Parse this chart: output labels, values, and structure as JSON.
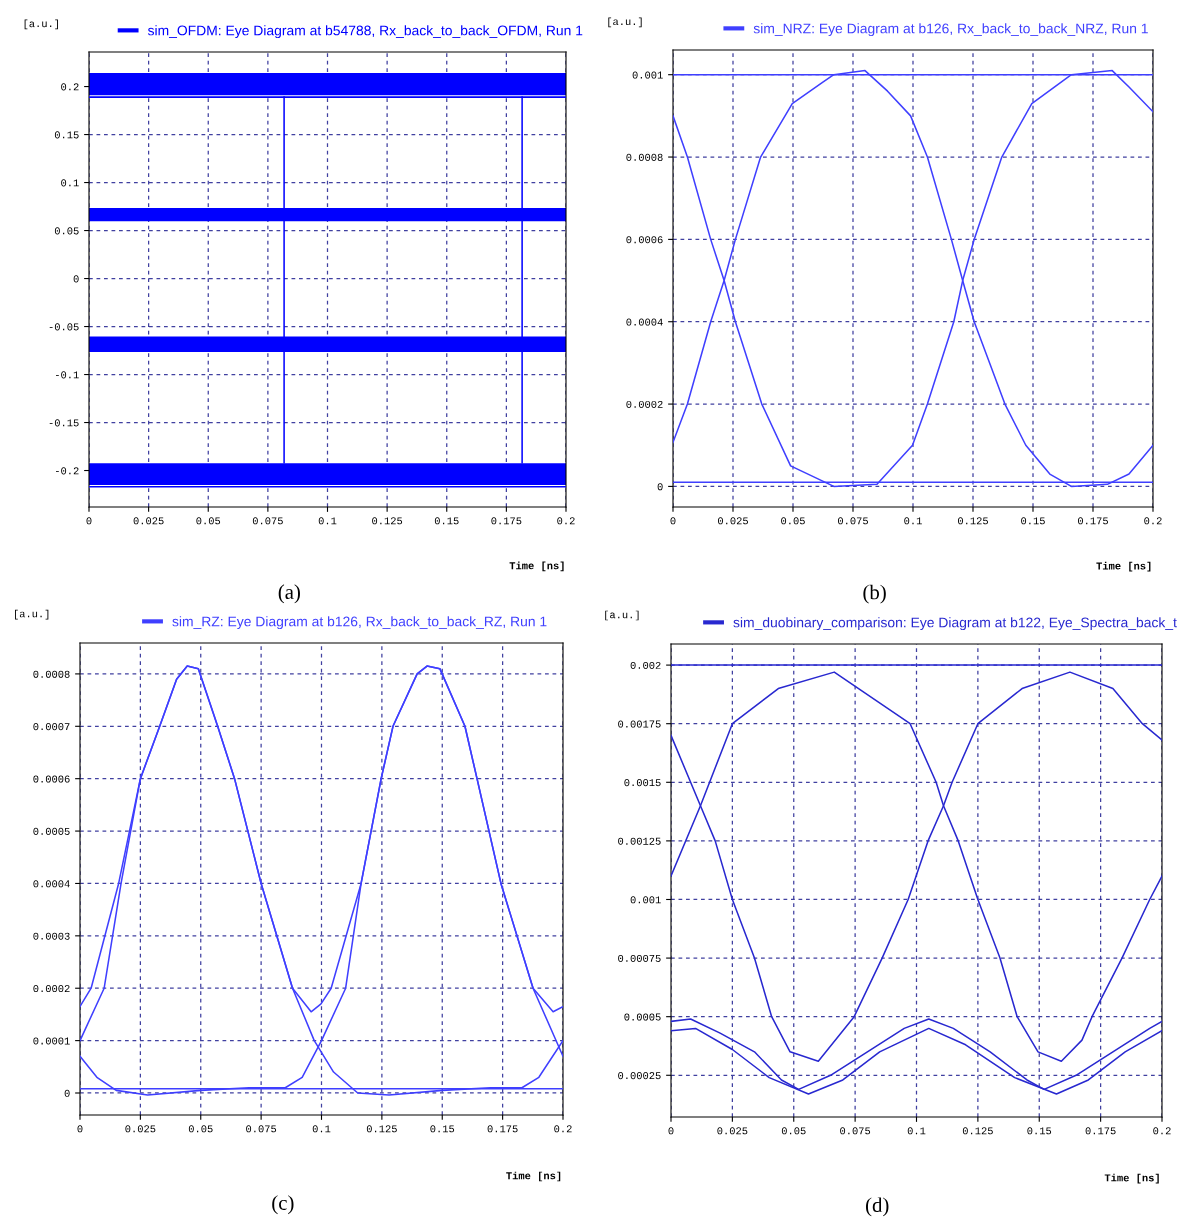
{
  "chart_data": [
    {
      "type": "line",
      "xlabel": "Time [ns]",
      "ylabel": "[a.u.]",
      "annotations": [
        "(a)"
      ],
      "legend": "top",
      "grid": true,
      "xlim": [
        0,
        0.2
      ],
      "xticks": [
        0,
        0.025,
        0.05,
        0.075,
        0.1,
        0.125,
        0.15,
        0.175,
        0.2
      ],
      "ylim": [
        -0.238,
        0.236
      ],
      "yticks": [
        -0.2,
        -0.15,
        -0.1,
        -0.05,
        0,
        0.05,
        0.1,
        0.15,
        0.2
      ],
      "bands": [
        {
          "axis": "y",
          "from": 0.191,
          "to": 0.214,
          "color": "#0000ff"
        },
        {
          "axis": "y",
          "from": 0.0596,
          "to": 0.0736,
          "color": "#0000ff"
        },
        {
          "axis": "y",
          "from": -0.0764,
          "to": -0.0604,
          "color": "#0000ff"
        },
        {
          "axis": "y",
          "from": -0.215,
          "to": -0.1924,
          "color": "#0000ff"
        }
      ],
      "series": [
        {
          "name": "sim_OFDM: Eye Diagram at b54788, Rx_back_to_back_OFDM, Run 1",
          "color": "#0000ff",
          "x": [
            0.0818,
            0.0818
          ],
          "values": [
            -0.192,
            0.189
          ]
        },
        {
          "color": "#0000ff",
          "x": [
            0.1816,
            0.1816
          ],
          "values": [
            -0.192,
            0.189
          ]
        },
        {
          "color": "#0000ff",
          "x": [
            0,
            0.2
          ],
          "values": [
            0.189,
            0.189
          ]
        },
        {
          "color": "#0000ff",
          "x": [
            0,
            0.2
          ],
          "values": [
            -0.217,
            -0.217
          ]
        }
      ]
    },
    {
      "type": "line",
      "xlabel": "Time [ns]",
      "ylabel": "[a.u.]",
      "annotations": [
        "(b)"
      ],
      "legend": "top",
      "grid": true,
      "xlim": [
        0,
        0.2
      ],
      "xticks": [
        0,
        0.025,
        0.05,
        0.075,
        0.1,
        0.125,
        0.15,
        0.175,
        0.2
      ],
      "ylim": [
        -5e-05,
        0.00106
      ],
      "yticks": [
        0,
        0.0002,
        0.0004,
        0.0006,
        0.0008,
        0.001
      ],
      "series": [
        {
          "name": "sim_NRZ: Eye Diagram at b126, Rx_back_to_back_NRZ, Run 1",
          "color": "#3f3fff",
          "x": [
            0,
            0.2
          ],
          "values": [
            0.001,
            0.001
          ]
        },
        {
          "color": "#3f3fff",
          "x": [
            0,
            0.2
          ],
          "values": [
            1e-05,
            1e-05
          ]
        },
        {
          "color": "#3f3fff",
          "x": [
            0,
            0.006,
            0.0157,
            0.0213,
            0.026,
            0.0365,
            0.0497,
            0.062,
            0.067,
            0.08,
            0.0894,
            0.099,
            0.106,
            0.116,
            0.1207,
            0.1255,
            0.1383,
            0.147,
            0.157,
            0.166,
            0.181,
            0.19,
            0.2
          ],
          "values": [
            0.000107,
            0.0002,
            0.0004,
            0.0005,
            0.0006,
            0.0008,
            0.00093,
            0.00098,
            0.001,
            0.00101,
            0.00096,
            0.0009,
            0.0008,
            0.0006,
            0.0005,
            0.0004,
            0.0002,
            0.0001,
            3e-05,
            0,
            5e-06,
            3e-05,
            0.0001
          ]
        },
        {
          "color": "#3f3fff",
          "x": [
            0,
            0.006,
            0.0157,
            0.0213,
            0.026,
            0.037,
            0.049,
            0.067,
            0.085,
            0.0998,
            0.106,
            0.117,
            0.1207,
            0.1255,
            0.137,
            0.1495,
            0.166,
            0.183,
            0.19,
            0.2
          ],
          "values": [
            0.0009,
            0.0008,
            0.0006,
            0.0005,
            0.0004,
            0.0002,
            5e-05,
            0,
            5e-06,
            0.0001,
            0.0002,
            0.0004,
            0.0005,
            0.0006,
            0.0008,
            0.00093,
            0.001,
            0.00101,
            0.00097,
            0.00091
          ]
        }
      ]
    },
    {
      "type": "line",
      "xlabel": "Time [ns]",
      "ylabel": "[a.u.]",
      "annotations": [
        "(c)"
      ],
      "legend": "top",
      "grid": true,
      "xlim": [
        0,
        0.2
      ],
      "xticks": [
        0,
        0.025,
        0.05,
        0.075,
        0.1,
        0.125,
        0.15,
        0.175,
        0.2
      ],
      "ylim": [
        -4.2e-05,
        0.000859
      ],
      "yticks": [
        0,
        0.0001,
        0.0002,
        0.0003,
        0.0004,
        0.0005,
        0.0006,
        0.0007,
        0.0008
      ],
      "series": [
        {
          "name": "sim_RZ: Eye Diagram at b126, Rx_back_to_back_RZ, Run 1",
          "color": "#3f3fff",
          "x": [
            0,
            0.2
          ],
          "values": [
            8e-06,
            8e-06
          ]
        },
        {
          "color": "#3f3fff",
          "x": [
            0,
            0.0046,
            0.016,
            0.025,
            0.033,
            0.04,
            0.0444,
            0.049,
            0.057,
            0.064,
            0.075,
            0.088,
            0.0957,
            0.0998,
            0.104,
            0.1164,
            0.1247,
            0.1296,
            0.1396,
            0.1437,
            0.149,
            0.1594,
            0.1644,
            0.1743,
            0.1876,
            0.1959,
            0.2
          ],
          "values": [
            0.000165,
            0.0002,
            0.0004,
            0.0006,
            0.0007,
            0.00079,
            0.000815,
            0.00081,
            0.0007,
            0.0006,
            0.0004,
            0.0002,
            0.000155,
            0.00017,
            0.0002,
            0.0004,
            0.0006,
            0.0007,
            0.0008,
            0.000815,
            0.00081,
            0.0007,
            0.0006,
            0.0004,
            0.0002,
            0.000155,
            0.000165
          ]
        },
        {
          "color": "#3f3fff",
          "x": [
            0,
            0.01,
            0.017,
            0.025,
            0.033,
            0.04,
            0.0444,
            0.049,
            0.057,
            0.064,
            0.075,
            0.088,
            0.097,
            0.105,
            0.115,
            0.128,
            0.15,
            0.17,
            0.183,
            0.19,
            0.2
          ],
          "values": [
            0.0001,
            0.0002,
            0.0004,
            0.0006,
            0.0007,
            0.00079,
            0.000815,
            0.00081,
            0.0007,
            0.0006,
            0.0004,
            0.0002,
            0.0001,
            4e-05,
            0,
            -4e-06,
            5e-06,
            1e-05,
            1e-05,
            3e-05,
            0.0001
          ]
        },
        {
          "color": "#3f3fff",
          "x": [
            0,
            0.007,
            0.015,
            0.028,
            0.05,
            0.07,
            0.085,
            0.092,
            0.1,
            0.11,
            0.1164,
            0.1247,
            0.1296,
            0.1396,
            0.1437,
            0.149,
            0.1594,
            0.1644,
            0.1743,
            0.1876,
            0.2
          ],
          "values": [
            7e-05,
            3e-05,
            5e-06,
            -4e-06,
            5e-06,
            1e-05,
            1e-05,
            3e-05,
            0.0001,
            0.0002,
            0.0004,
            0.0006,
            0.0007,
            0.0008,
            0.000815,
            0.00081,
            0.0007,
            0.0006,
            0.0004,
            0.0002,
            7e-05
          ]
        }
      ]
    },
    {
      "type": "line",
      "xlabel": "Time [ns]",
      "ylabel": "[a.u.]",
      "annotations": [
        "(d)"
      ],
      "legend": "top",
      "grid": true,
      "xlim": [
        0,
        0.2
      ],
      "xticks": [
        0,
        0.025,
        0.05,
        0.075,
        0.1,
        0.125,
        0.15,
        0.175,
        0.2
      ],
      "ylim": [
        7.2e-05,
        0.00209
      ],
      "yticks": [
        0.00025,
        0.0005,
        0.00075,
        0.001,
        0.00125,
        0.0015,
        0.00175,
        0.002
      ],
      "series": [
        {
          "name": "sim_duobinary_comparison: Eye Diagram at b122, Eye_Spectra_back_t",
          "color": "#2828d0",
          "x": [
            0,
            0.2
          ],
          "values": [
            0.002,
            0.002
          ]
        },
        {
          "color": "#2828d0",
          "x": [
            0,
            0.012,
            0.025,
            0.0437,
            0.0665,
            0.0974,
            0.108,
            0.111,
            0.117,
            0.125,
            0.134,
            0.141,
            0.1495,
            0.159,
            0.1674,
            0.1715,
            0.1837,
            0.195,
            0.2
          ],
          "values": [
            0.0011,
            0.0014,
            0.00175,
            0.0019,
            0.00197,
            0.00175,
            0.0015,
            0.0014,
            0.00125,
            0.001,
            0.00075,
            0.0005,
            0.00035,
            0.00031,
            0.0004,
            0.0005,
            0.00075,
            0.001,
            0.0011
          ]
        },
        {
          "color": "#2828d0",
          "x": [
            0,
            0.012,
            0.018,
            0.025,
            0.034,
            0.041,
            0.0485,
            0.06,
            0.0746,
            0.086,
            0.0966,
            0.1047,
            0.111,
            0.1145,
            0.125,
            0.143,
            0.1625,
            0.18,
            0.192,
            0.2
          ],
          "values": [
            0.0017,
            0.0014,
            0.00125,
            0.001,
            0.00075,
            0.0005,
            0.00035,
            0.00031,
            0.0005,
            0.00075,
            0.001,
            0.00125,
            0.0014,
            0.0015,
            0.00175,
            0.0019,
            0.00197,
            0.0019,
            0.00175,
            0.00168
          ]
        },
        {
          "color": "#2828d0",
          "x": [
            0,
            0.008,
            0.02,
            0.034,
            0.045,
            0.052,
            0.065,
            0.08,
            0.095,
            0.105,
            0.115,
            0.13,
            0.145,
            0.152,
            0.165,
            0.18,
            0.195,
            0.2
          ],
          "values": [
            0.00048,
            0.00049,
            0.00043,
            0.00035,
            0.00023,
            0.00019,
            0.00025,
            0.00035,
            0.00045,
            0.00049,
            0.00045,
            0.00035,
            0.00023,
            0.00019,
            0.00025,
            0.00035,
            0.00045,
            0.00048
          ]
        },
        {
          "color": "#2828d0",
          "x": [
            0,
            0.01,
            0.025,
            0.04,
            0.056,
            0.07,
            0.085,
            0.105,
            0.12,
            0.14,
            0.157,
            0.17,
            0.185,
            0.2
          ],
          "values": [
            0.00044,
            0.00045,
            0.00036,
            0.00024,
            0.00017,
            0.00023,
            0.00035,
            0.00045,
            0.00038,
            0.00024,
            0.00017,
            0.00023,
            0.00035,
            0.00044
          ]
        }
      ]
    }
  ]
}
